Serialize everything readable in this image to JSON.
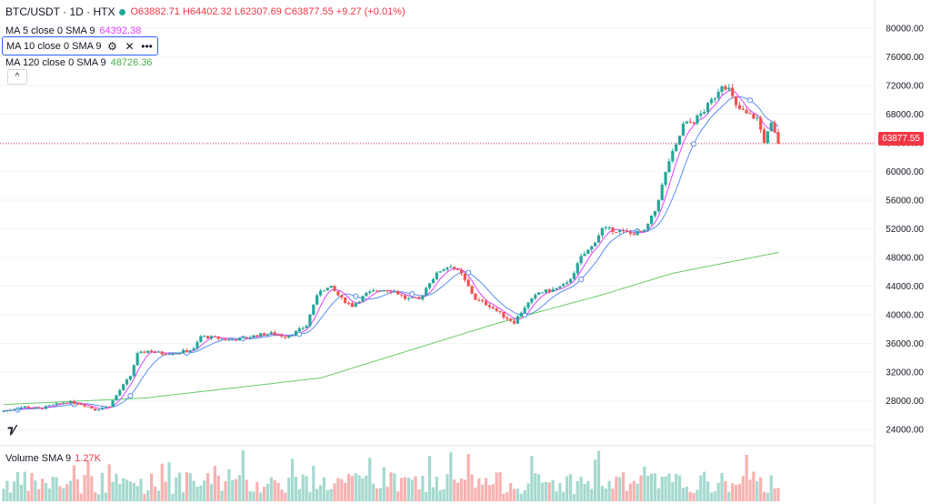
{
  "header": {
    "symbol": "BTC/USDT · 1D · HTX",
    "open": "O63882.71",
    "high": "H64402.32",
    "low": "L62307.69",
    "close": "C63877.55",
    "change": "+9.27 (+0.01%)"
  },
  "indicators": {
    "ma5": {
      "label": "MA 5 close 0 SMA 9",
      "value": "64392.38",
      "color": "#e040fb"
    },
    "ma10": {
      "label": "MA 10 close 0 SMA 9",
      "value": "",
      "color": "#2962ff"
    },
    "ma120": {
      "label": "MA 120 close 0 SMA 9",
      "value": "48726.36",
      "color": "#4caf50"
    }
  },
  "volume": {
    "label": "Volume SMA 9",
    "value": "1.27K"
  },
  "current_price": "63877.55",
  "colors": {
    "up": "#26a69a",
    "down": "#ef5350",
    "ma5": "#e040fb",
    "ma10": "#5b8def",
    "ma120": "#66cc66",
    "price_line": "#f23645"
  },
  "chart_data": {
    "type": "candlestick",
    "title": "BTC/USDT · 1D · HTX",
    "ylim": [
      22000,
      82000
    ],
    "y_ticks": [
      "80000.00",
      "76000.00",
      "72000.00",
      "68000.00",
      "64000.00",
      "60000.00",
      "56000.00",
      "52000.00",
      "48000.00",
      "44000.00",
      "40000.00",
      "36000.00",
      "32000.00",
      "28000.00",
      "24000.00"
    ],
    "close_anchors": [
      [
        0,
        26600
      ],
      [
        6,
        27200
      ],
      [
        10,
        26900
      ],
      [
        14,
        27400
      ],
      [
        18,
        27900
      ],
      [
        22,
        27600
      ],
      [
        26,
        26800
      ],
      [
        30,
        27300
      ],
      [
        33,
        29500
      ],
      [
        36,
        31500
      ],
      [
        38,
        34500
      ],
      [
        41,
        35000
      ],
      [
        45,
        34600
      ],
      [
        50,
        34800
      ],
      [
        54,
        35200
      ],
      [
        56,
        37000
      ],
      [
        60,
        36800
      ],
      [
        64,
        36500
      ],
      [
        68,
        36700
      ],
      [
        72,
        37200
      ],
      [
        76,
        37400
      ],
      [
        80,
        37000
      ],
      [
        83,
        37600
      ],
      [
        86,
        38500
      ],
      [
        88,
        41500
      ],
      [
        90,
        43500
      ],
      [
        93,
        43800
      ],
      [
        96,
        42200
      ],
      [
        99,
        41300
      ],
      [
        103,
        42900
      ],
      [
        107,
        43600
      ],
      [
        111,
        43300
      ],
      [
        114,
        42300
      ],
      [
        118,
        42100
      ],
      [
        121,
        44600
      ],
      [
        124,
        46200
      ],
      [
        127,
        46900
      ],
      [
        130,
        45600
      ],
      [
        134,
        42200
      ],
      [
        138,
        41300
      ],
      [
        142,
        39800
      ],
      [
        145,
        39000
      ],
      [
        148,
        41100
      ],
      [
        152,
        43100
      ],
      [
        156,
        43500
      ],
      [
        160,
        44300
      ],
      [
        162,
        46000
      ],
      [
        164,
        48000
      ],
      [
        167,
        49500
      ],
      [
        170,
        52000
      ],
      [
        174,
        51800
      ],
      [
        178,
        51300
      ],
      [
        182,
        51600
      ],
      [
        185,
        54500
      ],
      [
        187,
        58000
      ],
      [
        189,
        61500
      ],
      [
        191,
        63500
      ],
      [
        193,
        66500
      ],
      [
        196,
        67000
      ],
      [
        199,
        68500
      ],
      [
        202,
        70500
      ],
      [
        204,
        72200
      ],
      [
        206,
        71500
      ],
      [
        208,
        69000
      ],
      [
        211,
        68000
      ],
      [
        214,
        67400
      ],
      [
        216,
        64200
      ],
      [
        218,
        66500
      ],
      [
        220,
        64000
      ]
    ],
    "ma120_anchors": [
      [
        0,
        27500
      ],
      [
        40,
        28400
      ],
      [
        90,
        31200
      ],
      [
        140,
        38800
      ],
      [
        170,
        42800
      ],
      [
        190,
        45800
      ],
      [
        220,
        48700
      ]
    ]
  }
}
